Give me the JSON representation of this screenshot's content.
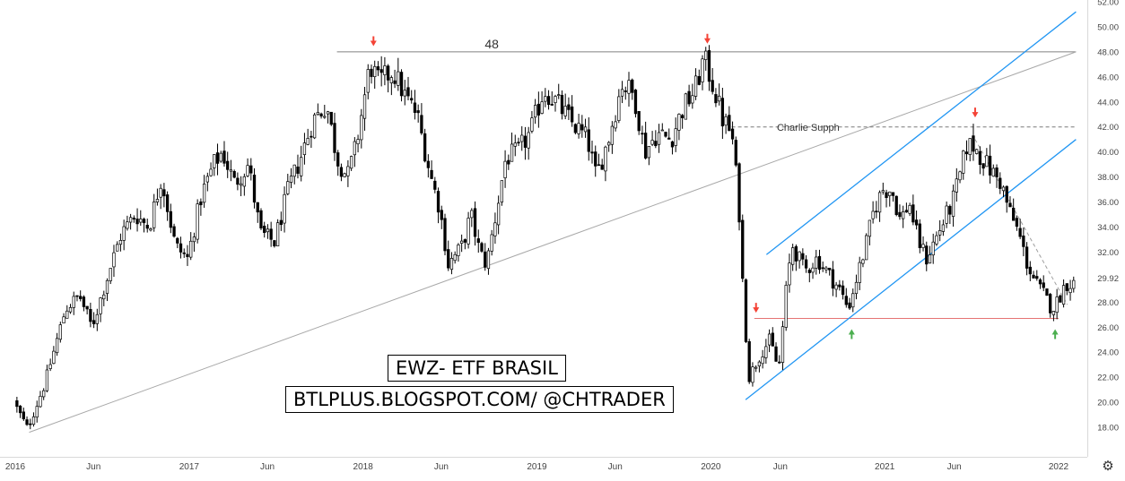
{
  "chart_data": {
    "type": "candlestick",
    "title": "EWZ- ETF BRASIL",
    "subtitle": "BTLPLUS.BLOGSPOT.COM/ @CHTRADER",
    "ylim": [
      17,
      52
    ],
    "y_ticks": [
      "52.00",
      "50.00",
      "48.00",
      "46.00",
      "44.00",
      "42.00",
      "40.00",
      "38.00",
      "36.00",
      "34.00",
      "32.00",
      "29.92",
      "28.00",
      "26.00",
      "24.00",
      "22.00",
      "20.00",
      "18.00"
    ],
    "y_tick_values": [
      52,
      50,
      48,
      46,
      44,
      42,
      40,
      38,
      36,
      34,
      32,
      29.92,
      28,
      26,
      24,
      22,
      20,
      18
    ],
    "last_price": "29.92",
    "x_ticks": [
      {
        "label": "2016",
        "t": 2016.0
      },
      {
        "label": "Jun",
        "t": 2016.45
      },
      {
        "label": "2017",
        "t": 2017.0
      },
      {
        "label": "Jun",
        "t": 2017.45
      },
      {
        "label": "2018",
        "t": 2018.0
      },
      {
        "label": "Jun",
        "t": 2018.45
      },
      {
        "label": "2019",
        "t": 2019.0
      },
      {
        "label": "Jun",
        "t": 2019.45
      },
      {
        "label": "2020",
        "t": 2020.0
      },
      {
        "label": "Jun",
        "t": 2020.4
      },
      {
        "label": "2021",
        "t": 2021.0
      },
      {
        "label": "Jun",
        "t": 2021.4
      },
      {
        "label": "2022",
        "t": 2022.0
      }
    ],
    "price_path": [
      [
        2015.9,
        23.5
      ],
      [
        2016.02,
        19.5
      ],
      [
        2016.08,
        17.9
      ],
      [
        2016.18,
        21.5
      ],
      [
        2016.3,
        27.5
      ],
      [
        2016.38,
        28.5
      ],
      [
        2016.45,
        26.0
      ],
      [
        2016.55,
        30.5
      ],
      [
        2016.62,
        33.5
      ],
      [
        2016.7,
        35.0
      ],
      [
        2016.78,
        34.0
      ],
      [
        2016.85,
        38.0
      ],
      [
        2016.93,
        32.5
      ],
      [
        2017.0,
        31.5
      ],
      [
        2017.08,
        36.5
      ],
      [
        2017.15,
        39.0
      ],
      [
        2017.2,
        40.0
      ],
      [
        2017.27,
        37.5
      ],
      [
        2017.35,
        39.0
      ],
      [
        2017.42,
        33.5
      ],
      [
        2017.5,
        32.8
      ],
      [
        2017.58,
        37.0
      ],
      [
        2017.65,
        39.5
      ],
      [
        2017.72,
        42.5
      ],
      [
        2017.8,
        43.8
      ],
      [
        2017.86,
        39.5
      ],
      [
        2017.92,
        38.0
      ],
      [
        2017.97,
        40.5
      ],
      [
        2018.05,
        47.0
      ],
      [
        2018.1,
        45.5
      ],
      [
        2018.18,
        46.5
      ],
      [
        2018.25,
        44.5
      ],
      [
        2018.32,
        43.0
      ],
      [
        2018.4,
        38.0
      ],
      [
        2018.45,
        35.5
      ],
      [
        2018.5,
        31.0
      ],
      [
        2018.58,
        32.5
      ],
      [
        2018.63,
        35.0
      ],
      [
        2018.68,
        32.0
      ],
      [
        2018.72,
        31.0
      ],
      [
        2018.78,
        35.5
      ],
      [
        2018.83,
        39.5
      ],
      [
        2018.9,
        40.0
      ],
      [
        2018.97,
        41.5
      ],
      [
        2019.05,
        45.0
      ],
      [
        2019.12,
        44.0
      ],
      [
        2019.2,
        42.5
      ],
      [
        2019.3,
        41.0
      ],
      [
        2019.35,
        38.0
      ],
      [
        2019.42,
        41.0
      ],
      [
        2019.5,
        45.5
      ],
      [
        2019.57,
        44.5
      ],
      [
        2019.63,
        40.0
      ],
      [
        2019.7,
        41.5
      ],
      [
        2019.78,
        41.0
      ],
      [
        2019.85,
        43.5
      ],
      [
        2019.92,
        45.0
      ],
      [
        2019.97,
        47.5
      ],
      [
        2020.03,
        45.0
      ],
      [
        2020.08,
        42.5
      ],
      [
        2020.13,
        41.5
      ],
      [
        2020.17,
        36.0
      ],
      [
        2020.2,
        27.5
      ],
      [
        2020.23,
        22.0
      ],
      [
        2020.3,
        24.0
      ],
      [
        2020.35,
        25.0
      ],
      [
        2020.4,
        22.5
      ],
      [
        2020.45,
        30.0
      ],
      [
        2020.48,
        32.5
      ],
      [
        2020.55,
        30.5
      ],
      [
        2020.62,
        31.5
      ],
      [
        2020.7,
        30.0
      ],
      [
        2020.75,
        29.0
      ],
      [
        2020.8,
        27.5
      ],
      [
        2020.85,
        30.0
      ],
      [
        2020.9,
        32.5
      ],
      [
        2020.95,
        35.5
      ],
      [
        2021.0,
        37.0
      ],
      [
        2021.05,
        37.0
      ],
      [
        2021.1,
        34.5
      ],
      [
        2021.15,
        36.0
      ],
      [
        2021.2,
        33.0
      ],
      [
        2021.25,
        31.5
      ],
      [
        2021.3,
        33.0
      ],
      [
        2021.35,
        34.5
      ],
      [
        2021.4,
        36.0
      ],
      [
        2021.45,
        38.5
      ],
      [
        2021.48,
        40.5
      ],
      [
        2021.52,
        40.5
      ],
      [
        2021.57,
        39.5
      ],
      [
        2021.62,
        38.5
      ],
      [
        2021.68,
        37.5
      ],
      [
        2021.72,
        35.5
      ],
      [
        2021.78,
        33.5
      ],
      [
        2021.83,
        31.0
      ],
      [
        2021.88,
        29.5
      ],
      [
        2021.93,
        28.5
      ],
      [
        2021.97,
        27.5
      ],
      [
        2022.0,
        28.0
      ],
      [
        2022.05,
        29.5
      ]
    ],
    "annotations": [
      {
        "text": "48",
        "t": 2018.7,
        "y": 48.0
      },
      {
        "text": "Charlie Supph",
        "t": 2020.38,
        "y": 41.4
      }
    ],
    "lines": [
      {
        "name": "resistance-48",
        "style": "solid",
        "color": "#808080",
        "points": [
          [
            2017.85,
            48.0
          ],
          [
            2022.1,
            48.0
          ]
        ]
      },
      {
        "name": "long-term-trendline",
        "style": "solid",
        "color": "#a8a8a8",
        "points": [
          [
            2016.08,
            17.6
          ],
          [
            2022.1,
            48.0
          ]
        ]
      },
      {
        "name": "level-42-dashed",
        "style": "dashed",
        "color": "#7a7a7a",
        "points": [
          [
            2020.12,
            42.0
          ],
          [
            2022.1,
            42.0
          ]
        ]
      },
      {
        "name": "support-26.7",
        "style": "solid",
        "color": "#e57373",
        "points": [
          [
            2020.25,
            26.7
          ],
          [
            2022.0,
            26.7
          ]
        ]
      },
      {
        "name": "channel-upper",
        "style": "solid",
        "color": "#2196f3",
        "points": [
          [
            2020.32,
            31.8
          ],
          [
            2022.1,
            51.2
          ]
        ]
      },
      {
        "name": "channel-lower",
        "style": "solid",
        "color": "#2196f3",
        "points": [
          [
            2020.2,
            20.2
          ],
          [
            2022.1,
            41.0
          ]
        ]
      },
      {
        "name": "down-trendline",
        "style": "dashed",
        "color": "#9e9e9e",
        "points": [
          [
            2021.52,
            41.0
          ],
          [
            2022.05,
            27.8
          ]
        ]
      }
    ],
    "markers": [
      {
        "kind": "down",
        "t": 2018.06,
        "y": 48.6,
        "color": "#f44336"
      },
      {
        "kind": "down",
        "t": 2019.98,
        "y": 48.8,
        "color": "#f44336"
      },
      {
        "kind": "down",
        "t": 2021.52,
        "y": 42.9,
        "color": "#f44336"
      },
      {
        "kind": "down",
        "t": 2020.26,
        "y": 27.3,
        "color": "#f44336"
      },
      {
        "kind": "up",
        "t": 2020.81,
        "y": 25.7,
        "color": "#4caf50"
      },
      {
        "kind": "up",
        "t": 2021.98,
        "y": 25.7,
        "color": "#4caf50"
      }
    ],
    "candle_up_color": "#ffffff",
    "candle_down_color": "#000000",
    "grid": false
  }
}
